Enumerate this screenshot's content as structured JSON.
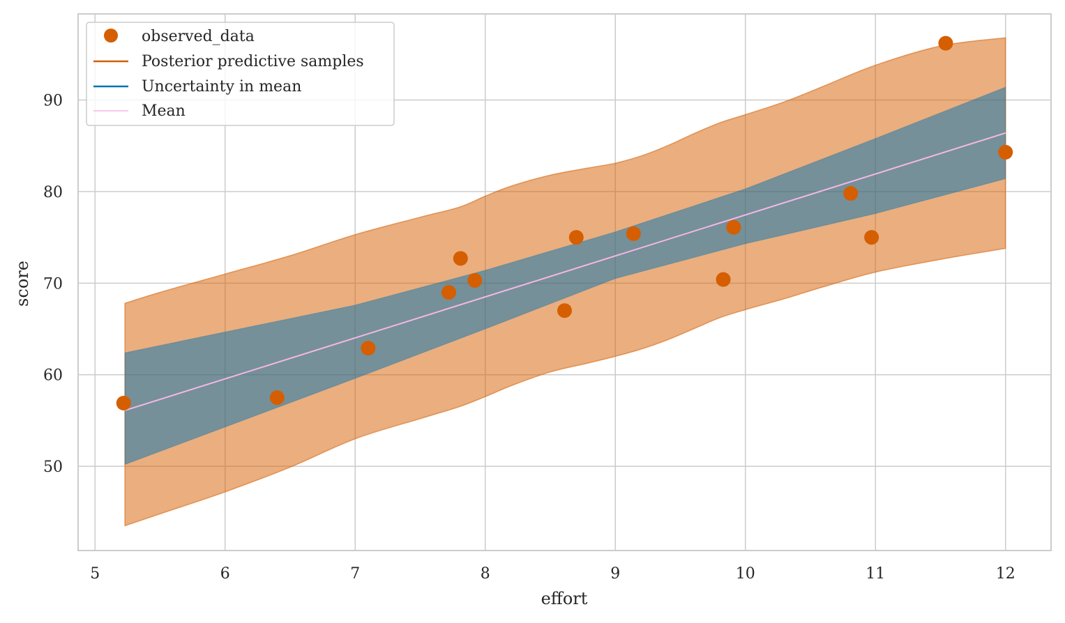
{
  "chart_data": {
    "type": "scatter",
    "xlabel": "effort",
    "ylabel": "score",
    "xlim": [
      4.87,
      12.35
    ],
    "ylim": [
      40.8,
      99.4
    ],
    "xticks": [
      5,
      6,
      7,
      8,
      9,
      10,
      11,
      12
    ],
    "yticks": [
      50,
      60,
      70,
      80,
      90
    ],
    "grid": true,
    "legend_position": "top-left",
    "legend": [
      {
        "label": "observed_data",
        "marker": "circle",
        "color": "#d55e00"
      },
      {
        "label": "Posterior predictive samples",
        "marker": "line",
        "color": "#d55e00"
      },
      {
        "label": "Uncertainty in mean",
        "marker": "line",
        "color": "#0072b2"
      },
      {
        "label": "Mean",
        "marker": "line",
        "color": "#f5b7e6"
      }
    ],
    "observed_data": {
      "color": "#d55e00",
      "points": [
        {
          "x": 5.22,
          "y": 56.9
        },
        {
          "x": 6.4,
          "y": 57.5
        },
        {
          "x": 7.1,
          "y": 62.9
        },
        {
          "x": 7.72,
          "y": 69.0
        },
        {
          "x": 7.81,
          "y": 72.7
        },
        {
          "x": 7.92,
          "y": 70.3
        },
        {
          "x": 8.61,
          "y": 67.0
        },
        {
          "x": 8.7,
          "y": 75.0
        },
        {
          "x": 9.14,
          "y": 75.4
        },
        {
          "x": 9.83,
          "y": 70.4
        },
        {
          "x": 9.91,
          "y": 76.1
        },
        {
          "x": 10.81,
          "y": 79.8
        },
        {
          "x": 10.97,
          "y": 75.0
        },
        {
          "x": 11.54,
          "y": 96.2
        },
        {
          "x": 12.0,
          "y": 84.3
        }
      ]
    },
    "posterior_predictive_band": {
      "color": "#d55e00",
      "x": [
        5.23,
        5.5,
        6.0,
        6.5,
        7.0,
        7.5,
        7.8,
        8.0,
        8.2,
        8.5,
        8.8,
        9.0,
        9.2,
        9.4,
        9.6,
        9.8,
        10.0,
        10.3,
        10.6,
        11.0,
        11.5,
        12.0
      ],
      "upper": [
        67.8,
        69.0,
        71.0,
        73.0,
        75.3,
        77.2,
        78.3,
        79.5,
        80.6,
        81.8,
        82.6,
        83.1,
        83.9,
        85.0,
        86.3,
        87.5,
        88.4,
        89.8,
        91.5,
        93.8,
        95.9,
        96.8
      ],
      "lower": [
        43.5,
        44.8,
        47.2,
        49.9,
        53.0,
        55.2,
        56.5,
        57.6,
        58.8,
        60.3,
        61.3,
        62.0,
        62.8,
        63.8,
        65.0,
        66.2,
        67.1,
        68.3,
        69.6,
        71.2,
        72.6,
        73.8
      ]
    },
    "mean_uncertainty_band": {
      "color": "#0072b2",
      "x": [
        5.23,
        7.0,
        8.0,
        9.0,
        10.0,
        11.0,
        12.0
      ],
      "upper": [
        62.4,
        67.6,
        71.4,
        75.6,
        80.3,
        85.8,
        91.4
      ],
      "lower": [
        50.2,
        59.6,
        65.0,
        70.5,
        74.3,
        77.6,
        81.4
      ]
    },
    "mean_line": {
      "color": "#f5b7e6",
      "x": [
        5.23,
        12.0
      ],
      "y": [
        56.1,
        86.4
      ]
    }
  }
}
